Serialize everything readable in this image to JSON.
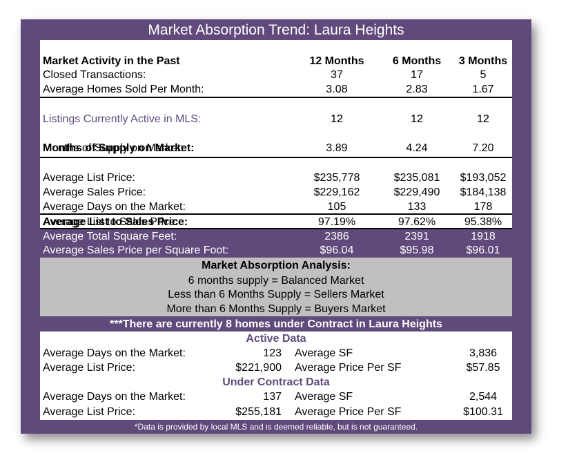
{
  "title": "Market Absorption Trend: Laura Heights",
  "activity": {
    "header": [
      "Market Activity in the Past",
      "12 Months",
      "6 Months",
      "3 Months"
    ],
    "rows": [
      [
        "Closed Transactions:",
        "37",
        "17",
        "5"
      ],
      [
        "Average Homes Sold Per Month:",
        "3.08",
        "2.83",
        "1.67"
      ]
    ]
  },
  "listings": [
    "Listings Currently Active in MLS:",
    "12",
    "12",
    "12"
  ],
  "supply": [
    "Months of Supply on Market:",
    "3.89",
    "4.24",
    "7.20"
  ],
  "prices": [
    [
      "Average List Price:",
      "$235,778",
      "$235,081",
      "$193,052"
    ],
    [
      "Average Sales Price:",
      "$229,162",
      "$229,490",
      "$184,138"
    ],
    [
      "Average Days on the Market:",
      "105",
      "133",
      "178"
    ]
  ],
  "list_to_sales": [
    "Average List to Sales Price:",
    "97.19%",
    "97.62%",
    "95.38%"
  ],
  "square_feet": [
    [
      "Average Total Square Feet:",
      "2386",
      "2391",
      "1918"
    ],
    [
      "Average Sales Price per Square Foot:",
      "$96.04",
      "$95.98",
      "$96.01"
    ]
  ],
  "analysis": {
    "title": "Market Absorption Analysis:",
    "lines": [
      "6 months supply = Balanced Market",
      "Less than 6 Months Supply = Sellers Market",
      "More than 6 Months Supply = Buyers Market"
    ]
  },
  "contract_note": "***There are currently 8 homes under Contract in Laura Heights",
  "active": {
    "title": "Active Data",
    "rows": [
      [
        "Average Days on the Market:",
        "123",
        "Average SF",
        "3,836"
      ],
      [
        "Average List Price:",
        "$221,900",
        "Average Price Per SF",
        "$57.85"
      ]
    ]
  },
  "under_contract": {
    "title": "Under Contract Data",
    "rows": [
      [
        "Average Days on the Market:",
        "137",
        "Average SF",
        "2,544"
      ],
      [
        "Average List Price:",
        "$255,181",
        "Average Price Per SF",
        "$100.31"
      ]
    ]
  },
  "footnote": "*Data is provided by local MLS and is deemed reliable, but is not guaranteed."
}
